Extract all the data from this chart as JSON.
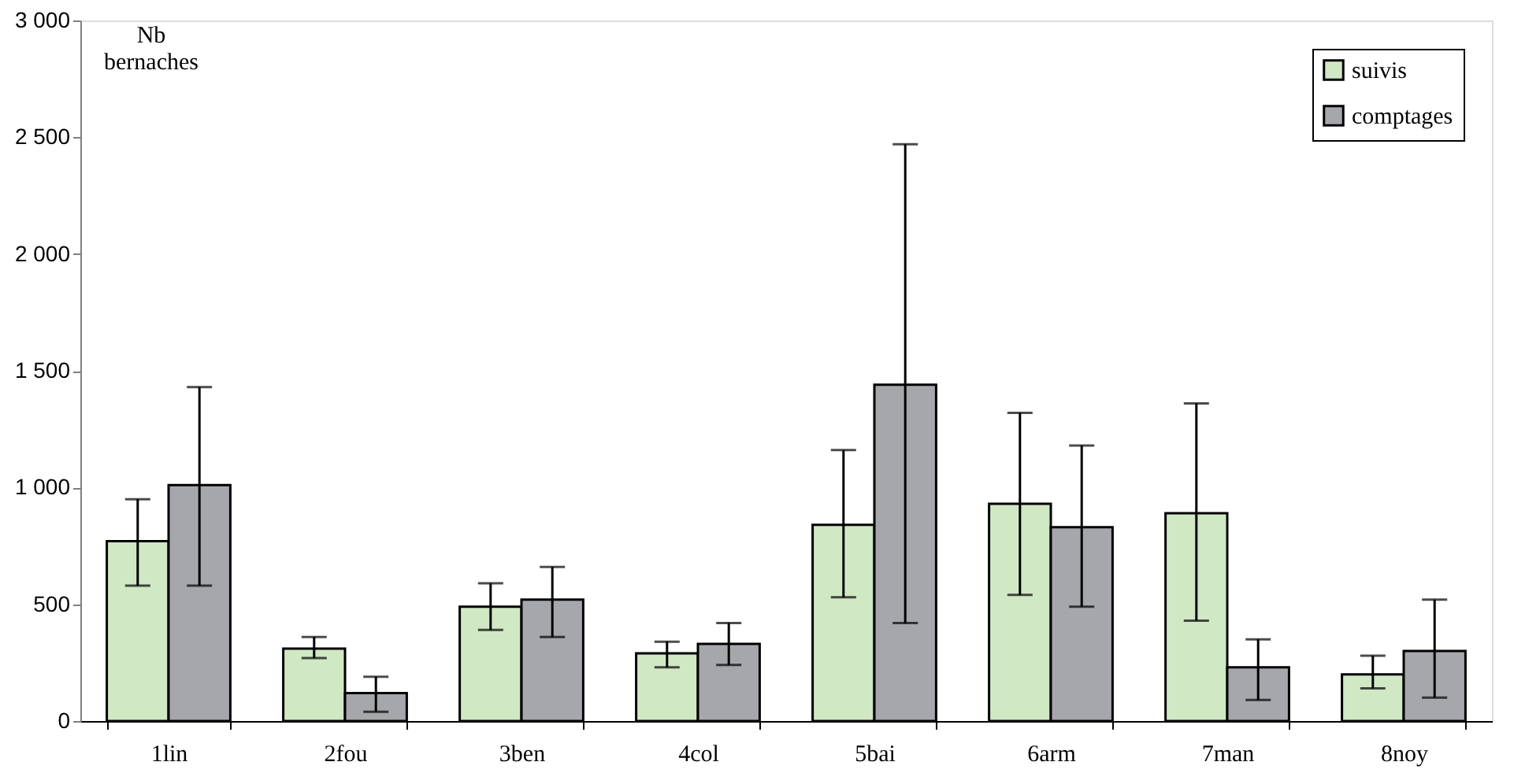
{
  "chart_data": {
    "type": "bar",
    "ylabel": "Nb bernaches",
    "categories": [
      "1lin",
      "2fou",
      "3ben",
      "4col",
      "5bai",
      "6arm",
      "7man",
      "8noy"
    ],
    "series": [
      {
        "name": "suivis",
        "color": "#d0e8c4",
        "values": [
          770,
          310,
          490,
          290,
          840,
          930,
          890,
          200
        ],
        "errors": [
          [
            580,
            950
          ],
          [
            270,
            360
          ],
          [
            390,
            590
          ],
          [
            230,
            340
          ],
          [
            530,
            1160
          ],
          [
            540,
            1320
          ],
          [
            430,
            1360
          ],
          [
            140,
            280
          ]
        ]
      },
      {
        "name": "comptages",
        "color": "#a6a7ab",
        "values": [
          1010,
          120,
          520,
          330,
          1440,
          830,
          230,
          300
        ],
        "errors": [
          [
            580,
            1430
          ],
          [
            40,
            190
          ],
          [
            360,
            660
          ],
          [
            240,
            420
          ],
          [
            420,
            2470
          ],
          [
            490,
            1180
          ],
          [
            90,
            350
          ],
          [
            100,
            520
          ]
        ]
      }
    ],
    "ylim": [
      0,
      3000
    ],
    "yticks": [
      0,
      {
        "value": 500,
        "label": "500"
      },
      {
        "value": 1000,
        "label": "1 000"
      },
      {
        "value": 1500,
        "label": "1 500"
      },
      {
        "value": 2000,
        "label": "2 000"
      },
      {
        "value": 2500,
        "label": "2 500"
      },
      {
        "value": 3000,
        "label": "3 000"
      }
    ],
    "grid": false,
    "legend": "top right"
  }
}
